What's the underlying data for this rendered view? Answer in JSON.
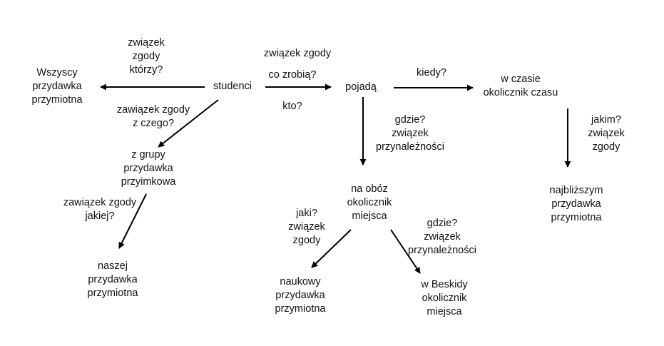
{
  "colors": {
    "stroke": "#000000",
    "text": "#111111",
    "background": "#ffffff"
  },
  "nodes": {
    "studenci": {
      "lines": [
        "studenci"
      ]
    },
    "wszyscy": {
      "lines": [
        "Wszyscy",
        "przydawka",
        "przymiotna"
      ]
    },
    "pojada": {
      "lines": [
        "pojadą"
      ]
    },
    "w_czasie": {
      "lines": [
        "w czasie",
        "okolicznik czasu"
      ]
    },
    "z_grupy": {
      "lines": [
        "z grupy",
        "przydawka",
        "przyimkowa"
      ]
    },
    "naszej": {
      "lines": [
        "naszej",
        "przydawka",
        "przymiotna"
      ]
    },
    "na_oboz": {
      "lines": [
        "na obóz",
        "okolicznik",
        "miejsca"
      ]
    },
    "najblizszym": {
      "lines": [
        "najbliższym",
        "przydawka",
        "przymiotna"
      ]
    },
    "naukowy": {
      "lines": [
        "naukowy",
        "przydawka",
        "przymiotna"
      ]
    },
    "w_beskidy": {
      "lines": [
        "w Beskidy",
        "okolicznik",
        "miejsca"
      ]
    }
  },
  "edge_labels": {
    "ktorzy": {
      "lines": [
        "związek",
        "zgody",
        "którzy?"
      ]
    },
    "co_zrobia_top": {
      "lines": [
        "związek zgody"
      ]
    },
    "co_zrobia": {
      "lines": [
        "co zrobią?"
      ]
    },
    "kto": {
      "lines": [
        "kto?"
      ]
    },
    "z_czego": {
      "lines": [
        "zawiązek zgody",
        "z czego?"
      ]
    },
    "kiedy": {
      "lines": [
        "kiedy?"
      ]
    },
    "gdzie1": {
      "lines": [
        "gdzie?",
        "związek",
        "przynależności"
      ]
    },
    "jakim": {
      "lines": [
        "jakim?",
        "związek",
        "zgody"
      ]
    },
    "jakiej": {
      "lines": [
        "zawiązek zgody",
        "jakiej?"
      ]
    },
    "jaki": {
      "lines": [
        "jaki?",
        "związek",
        "zgody"
      ]
    },
    "gdzie2": {
      "lines": [
        "gdzie?",
        "związek",
        "przynależności"
      ]
    }
  }
}
